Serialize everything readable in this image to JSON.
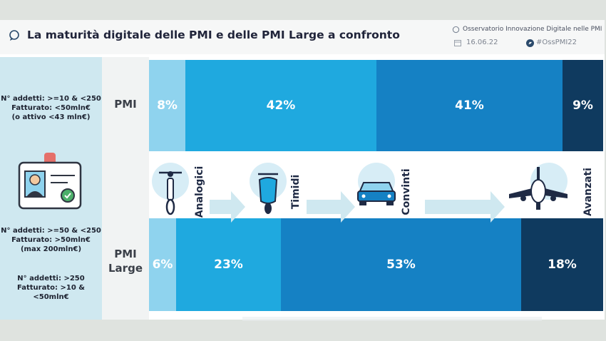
{
  "header": {
    "title": "La maturità digitale delle PMI e delle PMI Large a confronto",
    "source": "Osservatorio Innovazione Digitale nelle PMI",
    "date": "16.06.22",
    "hashtag": "#OssPMI22"
  },
  "sidebar": {
    "note_pmi": "N° addetti: >=10 & <250\nFatturato: <50mln€\n(o attivo <43 mln€)",
    "note_large_a": "N° addetti: >=50 & <250\nFatturato: >50mln€\n(max 200mln€)",
    "note_large_b": "N° addetti: >250\nFatturato: >10 &\n<50mln€"
  },
  "stages": [
    "Analogici",
    "Timidi",
    "Convinti",
    "Avanzati"
  ],
  "colors": {
    "analogici": "#8fd3ee",
    "timidi": "#1fa9df",
    "convinti": "#1581c4",
    "avanzati": "#0f3a5f"
  },
  "chart_data": {
    "type": "bar",
    "orientation": "horizontal",
    "stacked": true,
    "percent": true,
    "categories": [
      "PMI",
      "PMI\nLarge"
    ],
    "series": [
      {
        "name": "Analogici",
        "values": [
          8,
          6
        ]
      },
      {
        "name": "Timidi",
        "values": [
          42,
          23
        ]
      },
      {
        "name": "Convinti",
        "values": [
          41,
          53
        ]
      },
      {
        "name": "Avanzati",
        "values": [
          9,
          18
        ]
      }
    ],
    "labels": [
      [
        "8%",
        "42%",
        "41%",
        "9%"
      ],
      [
        "6%",
        "23%",
        "53%",
        "18%"
      ]
    ]
  }
}
